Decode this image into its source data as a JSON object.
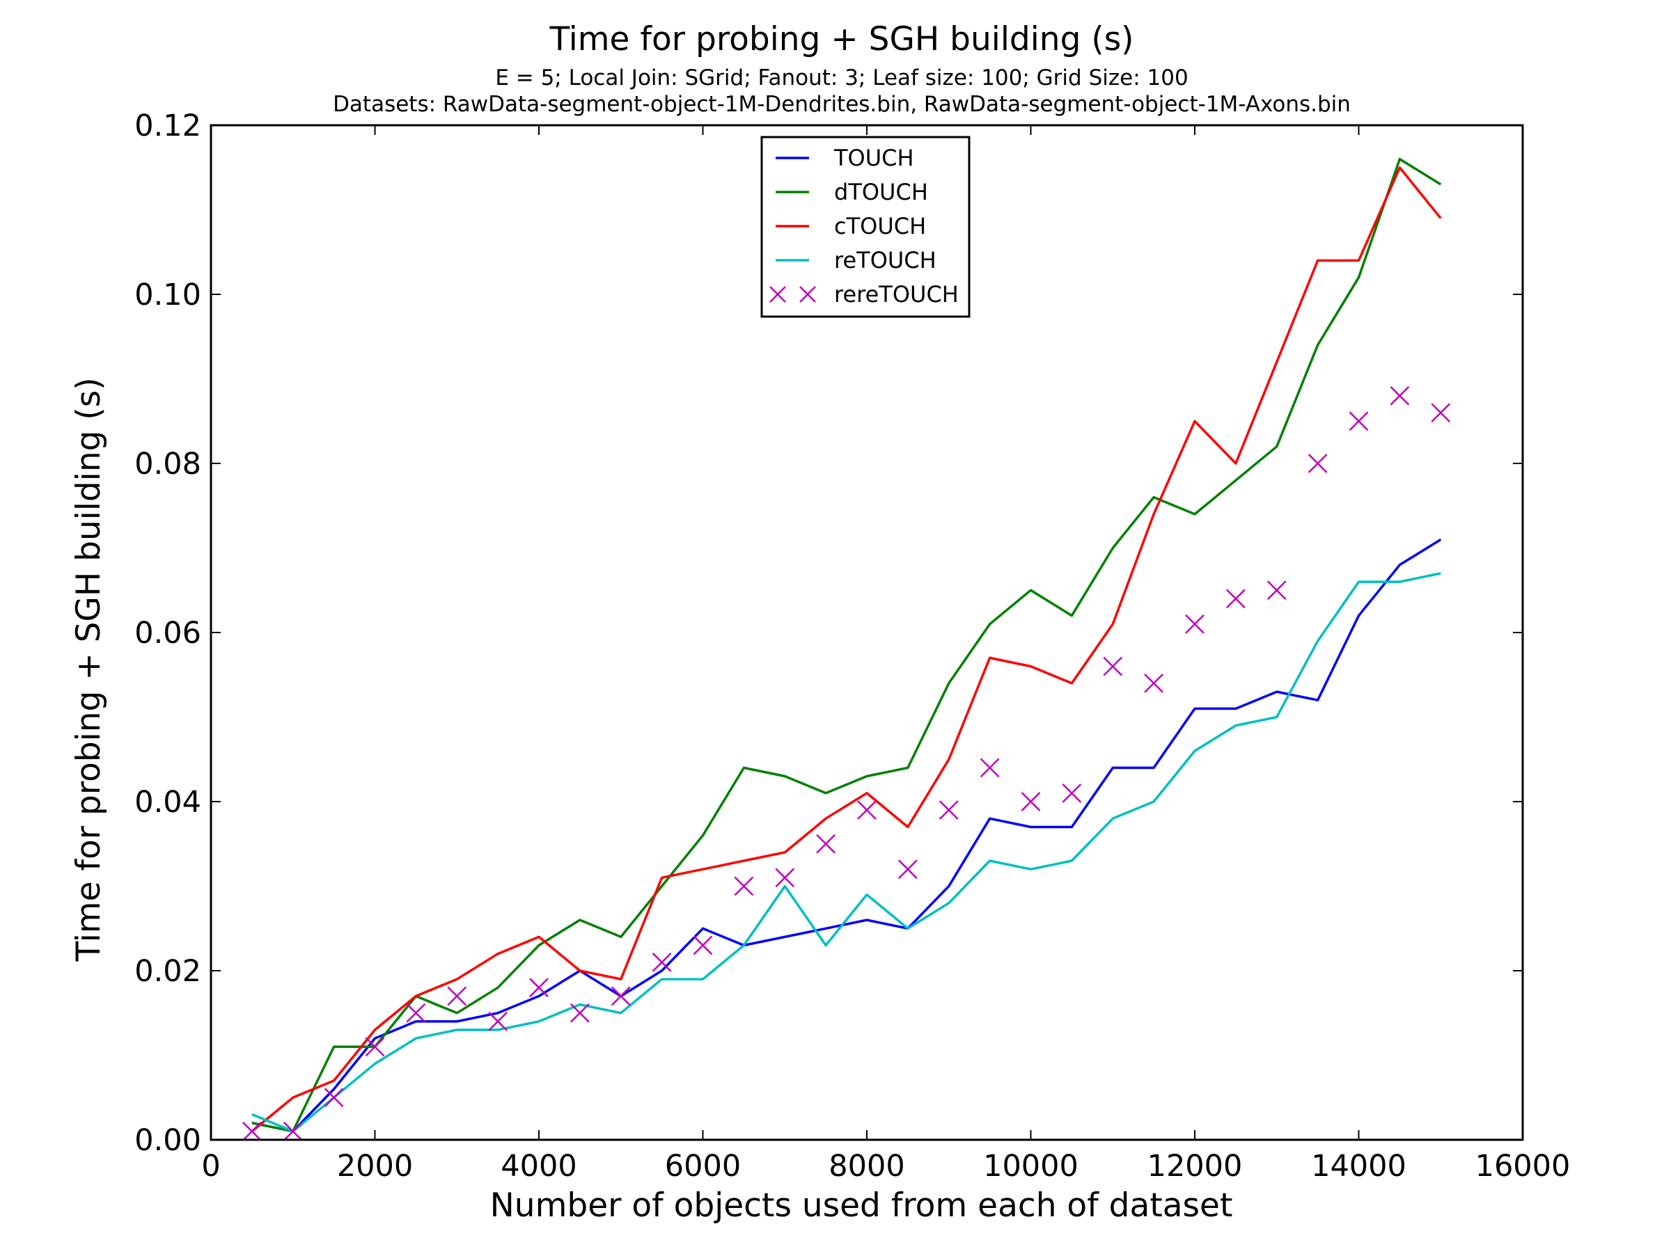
{
  "chart_data": {
    "type": "line",
    "title": "Time for probing + SGH building (s)",
    "subtitle_lines": [
      "E = 5; Local Join: SGrid; Fanout: 3; Leaf size: 100; Grid Size: 100",
      "Datasets: RawData-segment-object-1M-Dendrites.bin, RawData-segment-object-1M-Axons.bin"
    ],
    "xlabel": "Number of objects used from each of dataset",
    "ylabel": "Time for probing + SGH building (s)",
    "xlim": [
      0,
      16000
    ],
    "ylim": [
      0,
      0.12
    ],
    "x_ticks": [
      0,
      2000,
      4000,
      6000,
      8000,
      10000,
      12000,
      14000,
      16000
    ],
    "x_tick_labels": [
      "0",
      "2000",
      "4000",
      "6000",
      "8000",
      "10000",
      "12000",
      "14000",
      "16000"
    ],
    "y_ticks": [
      0,
      0.02,
      0.04,
      0.06,
      0.08,
      0.1,
      0.12
    ],
    "y_tick_labels": [
      "0.00",
      "0.02",
      "0.04",
      "0.06",
      "0.08",
      "0.10",
      "0.12"
    ],
    "grid": false,
    "legend_position": "top-center",
    "x": [
      500,
      1000,
      1500,
      2000,
      2500,
      3000,
      3500,
      4000,
      4500,
      5000,
      5500,
      6000,
      6500,
      7000,
      7500,
      8000,
      8500,
      9000,
      9500,
      10000,
      10500,
      11000,
      11500,
      12000,
      12500,
      13000,
      13500,
      14000,
      14500,
      15000
    ],
    "series": [
      {
        "name": "TOUCH",
        "style": "line",
        "color": "#0000ff",
        "values": [
          0.002,
          0.001,
          0.006,
          0.012,
          0.014,
          0.014,
          0.015,
          0.017,
          0.02,
          0.017,
          0.02,
          0.025,
          0.023,
          0.024,
          0.025,
          0.026,
          0.025,
          0.03,
          0.038,
          0.037,
          0.037,
          0.044,
          0.044,
          0.051,
          0.051,
          0.053,
          0.052,
          0.062,
          0.068,
          0.071
        ]
      },
      {
        "name": "dTOUCH",
        "style": "line",
        "color": "#008000",
        "values": [
          0.002,
          0.001,
          0.011,
          0.011,
          0.017,
          0.015,
          0.018,
          0.023,
          0.026,
          0.024,
          0.03,
          0.036,
          0.044,
          0.043,
          0.041,
          0.043,
          0.044,
          0.054,
          0.061,
          0.065,
          0.062,
          0.07,
          0.076,
          0.074,
          0.078,
          0.082,
          0.094,
          0.102,
          0.116,
          0.113
        ]
      },
      {
        "name": "cTOUCH",
        "style": "line",
        "color": "#ff0000",
        "values": [
          0.001,
          0.005,
          0.007,
          0.013,
          0.017,
          0.019,
          0.022,
          0.024,
          0.02,
          0.019,
          0.031,
          0.032,
          0.033,
          0.034,
          0.038,
          0.041,
          0.037,
          0.045,
          0.057,
          0.056,
          0.054,
          0.061,
          0.074,
          0.085,
          0.08,
          0.092,
          0.104,
          0.104,
          0.115,
          0.109
        ]
      },
      {
        "name": "reTOUCH",
        "style": "line",
        "color": "#00bfbf",
        "values": [
          0.003,
          0.001,
          0.005,
          0.009,
          0.012,
          0.013,
          0.013,
          0.014,
          0.016,
          0.015,
          0.019,
          0.019,
          0.023,
          0.03,
          0.023,
          0.029,
          0.025,
          0.028,
          0.033,
          0.032,
          0.033,
          0.038,
          0.04,
          0.046,
          0.049,
          0.05,
          0.059,
          0.066,
          0.066,
          0.067
        ]
      },
      {
        "name": "rereTOUCH",
        "style": "marker-x",
        "color": "#bf00bf",
        "values": [
          0.001,
          0.001,
          0.005,
          0.011,
          0.015,
          0.017,
          0.014,
          0.018,
          0.015,
          0.017,
          0.021,
          0.023,
          0.03,
          0.031,
          0.035,
          0.039,
          0.032,
          0.039,
          0.044,
          0.04,
          0.041,
          0.056,
          0.054,
          0.061,
          0.064,
          0.065,
          0.08,
          0.085,
          0.088,
          0.086
        ]
      }
    ]
  }
}
